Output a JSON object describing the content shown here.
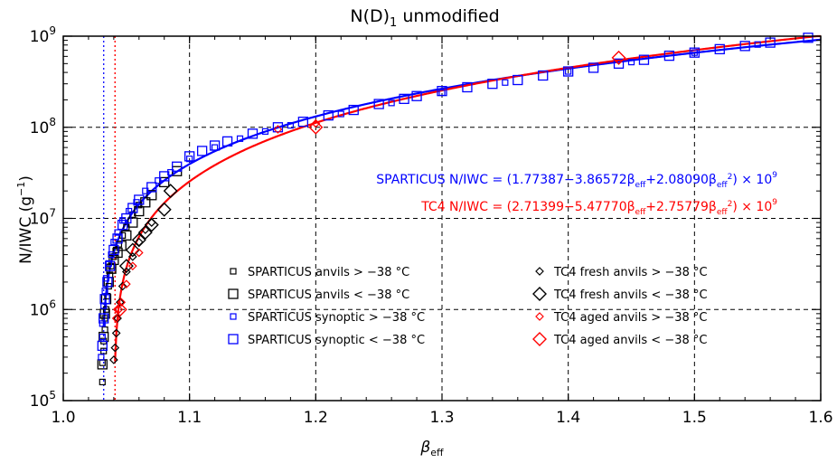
{
  "chart_data": {
    "type": "scatter",
    "title_main": "N(D)",
    "title_sub": "1",
    "title_rest": " unmodified",
    "xlabel_main": "β",
    "xlabel_sub": "eff",
    "ylabel_main": "N/IWC (g",
    "ylabel_sup": "−1",
    "ylabel_close": ")",
    "xlim": [
      1.0,
      1.6
    ],
    "ylim": [
      100000,
      1000000000
    ],
    "y_scale": "log",
    "x_ticks": [
      "1.0",
      "1.1",
      "1.2",
      "1.3",
      "1.4",
      "1.5",
      "1.6"
    ],
    "x_tick_values": [
      1.0,
      1.1,
      1.2,
      1.3,
      1.4,
      1.5,
      1.6
    ],
    "y_tick_base": "10",
    "y_ticks": [
      "5",
      "6",
      "7",
      "8",
      "9"
    ],
    "y_tick_values": [
      100000,
      1000000,
      10000000,
      100000000,
      1000000000
    ],
    "grid": true,
    "vertical_lines": [
      {
        "x": 1.032,
        "color": "#1a1aff"
      },
      {
        "x": 1.041,
        "color": "#ff0000"
      }
    ],
    "fits": [
      {
        "color": "#0000ff",
        "coefficients": [
          1.77387,
          -3.86572,
          2.0809
        ],
        "scale": 1000000000,
        "x_range": [
          1.032,
          1.6
        ],
        "eq_label": "SPARTICUS N/IWC = (1.77387−3.86572β",
        "eq_mid": "+2.08090β",
        "eq_tail": ") × 10",
        "eq_sup": "9",
        "eq_sub": "eff",
        "eq_sq": "2"
      },
      {
        "color": "#ff0000",
        "coefficients": [
          2.71399,
          -5.4777,
          2.75779
        ],
        "scale": 1000000000,
        "x_range": [
          1.04,
          1.6
        ],
        "eq_label": "TC4 N/IWC = (2.71399−5.47770β",
        "eq_mid": "+2.75779β",
        "eq_tail": ") × 10",
        "eq_sup": "9",
        "eq_sub": "eff",
        "eq_sq": "2"
      }
    ],
    "series": [
      {
        "name": "SPARTICUS anvils > −38 °C",
        "marker": "square-small",
        "color": "#000000",
        "points": [
          [
            1.031,
            160000
          ],
          [
            1.031,
            260000
          ],
          [
            1.032,
            350000
          ],
          [
            1.032,
            450000
          ],
          [
            1.033,
            600000
          ],
          [
            1.033,
            800000
          ],
          [
            1.034,
            1000000
          ],
          [
            1.035,
            1400000
          ],
          [
            1.036,
            1800000
          ],
          [
            1.037,
            2400000
          ],
          [
            1.038,
            3000000
          ],
          [
            1.04,
            3800000
          ],
          [
            1.042,
            4500000
          ],
          [
            1.044,
            5200000
          ],
          [
            1.047,
            6500000
          ],
          [
            1.05,
            8000000
          ],
          [
            1.055,
            11000000
          ],
          [
            1.06,
            14000000
          ]
        ]
      },
      {
        "name": "SPARTICUS anvils < −38 °C",
        "marker": "square-large",
        "color": "#000000",
        "points": [
          [
            1.031,
            250000
          ],
          [
            1.032,
            500000
          ],
          [
            1.033,
            900000
          ],
          [
            1.034,
            1300000
          ],
          [
            1.036,
            2000000
          ],
          [
            1.038,
            2800000
          ],
          [
            1.04,
            3500000
          ],
          [
            1.043,
            4200000
          ],
          [
            1.046,
            5000000
          ],
          [
            1.05,
            6500000
          ],
          [
            1.055,
            9000000
          ],
          [
            1.06,
            12000000
          ],
          [
            1.065,
            15000000
          ],
          [
            1.07,
            18000000
          ],
          [
            1.08,
            25000000
          ],
          [
            1.09,
            33000000
          ]
        ]
      },
      {
        "name": "SPARTICUS synoptic > −38 °C",
        "marker": "square-small",
        "color": "#0000ff",
        "points": [
          [
            1.03,
            300000
          ],
          [
            1.031,
            500000
          ],
          [
            1.031,
            700000
          ],
          [
            1.032,
            1100000
          ],
          [
            1.033,
            1600000
          ],
          [
            1.034,
            2200000
          ],
          [
            1.036,
            3200000
          ],
          [
            1.038,
            4000000
          ],
          [
            1.04,
            5500000
          ],
          [
            1.043,
            7000000
          ],
          [
            1.047,
            9500000
          ],
          [
            1.052,
            12000000
          ],
          [
            1.058,
            15000000
          ],
          [
            1.065,
            20000000
          ],
          [
            1.075,
            26000000
          ],
          [
            1.085,
            32000000
          ],
          [
            1.1,
            45000000
          ],
          [
            1.12,
            60000000
          ],
          [
            1.14,
            75000000
          ],
          [
            1.16,
            90000000
          ],
          [
            1.18,
            105000000
          ],
          [
            1.22,
            140000000
          ],
          [
            1.26,
            185000000
          ],
          [
            1.3,
            240000000
          ],
          [
            1.35,
            310000000
          ],
          [
            1.4,
            410000000
          ],
          [
            1.45,
            520000000
          ],
          [
            1.5,
            660000000
          ],
          [
            1.55,
            810000000
          ]
        ]
      },
      {
        "name": "SPARTICUS synoptic < −38 °C",
        "marker": "square-large",
        "color": "#0000ff",
        "points": [
          [
            1.031,
            400000
          ],
          [
            1.032,
            800000
          ],
          [
            1.033,
            1300000
          ],
          [
            1.035,
            2000000
          ],
          [
            1.037,
            3000000
          ],
          [
            1.04,
            4500000
          ],
          [
            1.043,
            6000000
          ],
          [
            1.047,
            8500000
          ],
          [
            1.05,
            10000000
          ],
          [
            1.055,
            13000000
          ],
          [
            1.06,
            16000000
          ],
          [
            1.07,
            22000000
          ],
          [
            1.08,
            29000000
          ],
          [
            1.09,
            37000000
          ],
          [
            1.1,
            48000000
          ],
          [
            1.11,
            55000000
          ],
          [
            1.12,
            63000000
          ],
          [
            1.13,
            70000000
          ],
          [
            1.15,
            85000000
          ],
          [
            1.17,
            100000000
          ],
          [
            1.19,
            115000000
          ],
          [
            1.21,
            135000000
          ],
          [
            1.23,
            155000000
          ],
          [
            1.25,
            180000000
          ],
          [
            1.27,
            205000000
          ],
          [
            1.28,
            220000000
          ],
          [
            1.3,
            250000000
          ],
          [
            1.32,
            275000000
          ],
          [
            1.34,
            300000000
          ],
          [
            1.36,
            330000000
          ],
          [
            1.38,
            370000000
          ],
          [
            1.4,
            410000000
          ],
          [
            1.42,
            450000000
          ],
          [
            1.44,
            500000000
          ],
          [
            1.46,
            550000000
          ],
          [
            1.48,
            610000000
          ],
          [
            1.5,
            660000000
          ],
          [
            1.52,
            720000000
          ],
          [
            1.54,
            780000000
          ],
          [
            1.56,
            850000000
          ],
          [
            1.59,
            960000000
          ]
        ]
      },
      {
        "name": "TC4 fresh anvils > −38 °C",
        "marker": "diamond-small",
        "color": "#000000",
        "points": [
          [
            1.04,
            280000
          ],
          [
            1.041,
            380000
          ],
          [
            1.042,
            550000
          ],
          [
            1.043,
            800000
          ],
          [
            1.045,
            1200000
          ],
          [
            1.047,
            1800000
          ],
          [
            1.05,
            2600000
          ],
          [
            1.055,
            3800000
          ],
          [
            1.06,
            5500000
          ],
          [
            1.065,
            7500000
          ],
          [
            1.07,
            9000000
          ]
        ]
      },
      {
        "name": "TC4 fresh anvils < −38 °C",
        "marker": "diamond-large",
        "color": "#000000",
        "points": [
          [
            1.05,
            3000000
          ],
          [
            1.055,
            4500000
          ],
          [
            1.06,
            5800000
          ],
          [
            1.065,
            7000000
          ],
          [
            1.07,
            8500000
          ],
          [
            1.08,
            12500000
          ],
          [
            1.085,
            20000000
          ]
        ]
      },
      {
        "name": "TC4 aged anvils > −38 °C",
        "marker": "diamond-small",
        "color": "#ff0000",
        "points": [
          [
            1.042,
            800000
          ],
          [
            1.044,
            1000000
          ],
          [
            1.046,
            1200000
          ],
          [
            1.05,
            1900000
          ],
          [
            1.055,
            3000000
          ],
          [
            1.06,
            4200000
          ],
          [
            1.17,
            95000000
          ],
          [
            1.2,
            110000000
          ]
        ]
      },
      {
        "name": "TC4 aged anvils < −38 °C",
        "marker": "diamond-large",
        "color": "#ff0000",
        "points": [
          [
            1.045,
            1000000
          ],
          [
            1.2,
            100000000
          ],
          [
            1.44,
            580000000
          ]
        ]
      }
    ]
  }
}
